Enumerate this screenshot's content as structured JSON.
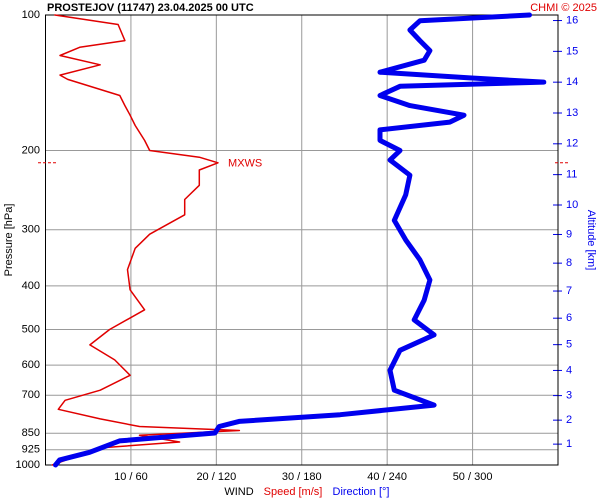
{
  "chart_data": {
    "type": "line",
    "title": "PROSTEJOV (11747)    23.04.2025 00 UTC",
    "credit": "CHMI © 2025",
    "ylabel": "Pressure [hPa]",
    "y2label": "Altitude [km]",
    "xlabel": "WIND",
    "ylim": [
      100,
      1000
    ],
    "yscale": "log",
    "yticks": [
      100,
      200,
      300,
      400,
      500,
      600,
      700,
      850,
      925,
      1000
    ],
    "y2ticks": [
      1,
      2,
      3,
      4,
      5,
      6,
      7,
      8,
      9,
      10,
      11,
      12,
      13,
      14,
      15,
      16
    ],
    "xlim": [
      0,
      60
    ],
    "xticks": [
      {
        "value": 10,
        "label": "10 / 60"
      },
      {
        "value": 20,
        "label": "20 / 120"
      },
      {
        "value": 30,
        "label": "30 / 180"
      },
      {
        "value": 40,
        "label": "40 / 240"
      },
      {
        "value": 50,
        "label": "50 / 300"
      }
    ],
    "x2lim": [
      0,
      360
    ],
    "grid": true,
    "series": [
      {
        "name": "Speed [m/s]",
        "color": "#e00000",
        "pressure": [
          100,
          105,
          114,
          118,
          123,
          129,
          136,
          139,
          151,
          159,
          167,
          176,
          190,
          200,
          207,
          213,
          221,
          239,
          257,
          278,
          307,
          330,
          368,
          408,
          452,
          500,
          541,
          584,
          632,
          682,
          718,
          752,
          790,
          821,
          838,
          859,
          889,
          916,
          950,
          1000
        ],
        "values": [
          1.1,
          8.5,
          9.3,
          4,
          1.7,
          6.4,
          1.7,
          2.6,
          8.7,
          9.3,
          9.9,
          10.5,
          11.6,
          12.2,
          18,
          20.2,
          18,
          18,
          16.3,
          16.3,
          12.2,
          10.5,
          9.6,
          9.9,
          11.6,
          7.5,
          5.2,
          8.1,
          9.9,
          6.4,
          2.3,
          1.5,
          6.4,
          11,
          22.7,
          11,
          15.7,
          6.4,
          4,
          0.8
        ]
      },
      {
        "name": "Direction [°]",
        "color": "#0000ee",
        "axis": "x2",
        "pressure": [
          100,
          103,
          108,
          114,
          120,
          126,
          134,
          138,
          141,
          144,
          151,
          159,
          167,
          173,
          180,
          190,
          200,
          210,
          227,
          251,
          286,
          316,
          350,
          388,
          430,
          476,
          514,
          556,
          616,
          682,
          736,
          773,
          800,
          821,
          849,
          884,
          937,
          974,
          1000
        ],
        "values": [
          340,
          263,
          256,
          263,
          270,
          266,
          235,
          298,
          350,
          249,
          235,
          256,
          294,
          284,
          235,
          235,
          249,
          242,
          256,
          253,
          245,
          253,
          263,
          270,
          266,
          259,
          273,
          249,
          242,
          245,
          273,
          207,
          136,
          122,
          119,
          52,
          31,
          10,
          7
        ]
      }
    ],
    "annotation": {
      "text": "MXWS",
      "pressure": 213
    }
  }
}
